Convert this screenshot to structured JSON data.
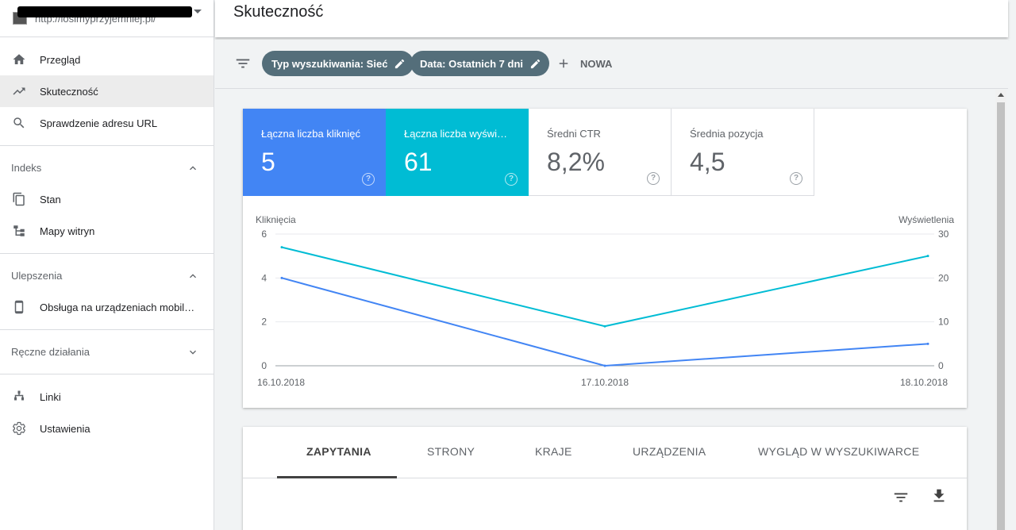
{
  "property": {
    "url": "http://losimyprzyjemniej.pl/"
  },
  "sidebar": {
    "top_items": [
      {
        "label": "Przegląd",
        "icon": "home-icon"
      },
      {
        "label": "Skuteczność",
        "icon": "trending-up-icon",
        "active": true
      },
      {
        "label": "Sprawdzenie adresu URL",
        "icon": "search-icon"
      }
    ],
    "sections": [
      {
        "title": "Indeks",
        "expanded": true,
        "items": [
          {
            "label": "Stan",
            "icon": "copy-icon"
          },
          {
            "label": "Mapy witryn",
            "icon": "sitemap-icon"
          }
        ]
      },
      {
        "title": "Ulepszenia",
        "expanded": true,
        "items": [
          {
            "label": "Obsługa na urządzeniach mobil…",
            "icon": "smartphone-icon"
          }
        ]
      },
      {
        "title": "Ręczne działania",
        "expanded": false,
        "items": []
      }
    ],
    "bottom_items": [
      {
        "label": "Linki",
        "icon": "links-icon"
      },
      {
        "label": "Ustawienia",
        "icon": "gear-icon"
      }
    ]
  },
  "header": {
    "title": "Skuteczność"
  },
  "filters": {
    "chips": [
      {
        "label": "Typ wyszukiwania: Sieć"
      },
      {
        "label": "Data: Ostatnich 7 dni"
      }
    ],
    "new_label": "NOWA"
  },
  "metrics": {
    "clicks": {
      "label": "Łączna liczba kliknięć",
      "value": "5",
      "help": "?"
    },
    "impressions": {
      "label": "Łączna liczba wyświetleń",
      "value": "61",
      "help": "?"
    },
    "ctr": {
      "label": "Średni CTR",
      "value": "8,2%",
      "help": "?"
    },
    "position": {
      "label": "Średnia pozycja",
      "value": "4,5",
      "help": "?"
    }
  },
  "colors": {
    "clicks": "#4285f4",
    "impressions": "#00bcd4",
    "chip": "#546e7a"
  },
  "chart_data": {
    "type": "line",
    "x": [
      "16.10.2018",
      "17.10.2018",
      "18.10.2018"
    ],
    "series": [
      {
        "name": "Kliknięcia",
        "axis": "left",
        "color": "#4285f4",
        "values": [
          4,
          0,
          1
        ]
      },
      {
        "name": "Wyświetlenia",
        "axis": "right",
        "color": "#00bcd4",
        "values": [
          27,
          9,
          25
        ]
      }
    ],
    "ylabel_left": "Kliknięcia",
    "ylabel_right": "Wyświetlenia",
    "ylim_left": [
      0,
      6
    ],
    "ylim_right": [
      0,
      30
    ],
    "yticks_left": [
      "0",
      "2",
      "4",
      "6"
    ],
    "yticks_right": [
      "0",
      "10",
      "20",
      "30"
    ],
    "grid": true
  },
  "tabs": [
    "ZAPYTANIA",
    "STRONY",
    "KRAJE",
    "URZĄDZENIA",
    "WYGLĄD W WYSZUKIWARCE"
  ]
}
